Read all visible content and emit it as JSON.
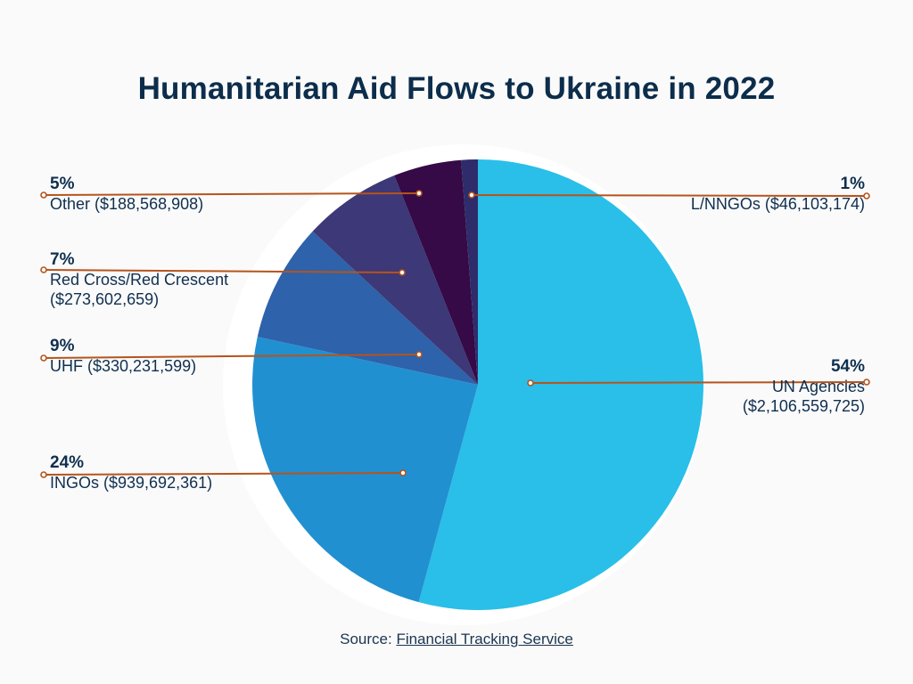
{
  "chart_data": {
    "type": "pie",
    "title": "Humanitarian Aid Flows to Ukraine in 2022",
    "slices": [
      {
        "key": "un",
        "pct_label": "54%",
        "name": "UN Agencies",
        "amount": "($2,106,559,725)",
        "value": 2106559725,
        "color": "#29bfe8"
      },
      {
        "key": "ingo",
        "pct_label": "24%",
        "name": "INGOs",
        "amount": "($939,692,361)",
        "value": 939692361,
        "color": "#2190d0"
      },
      {
        "key": "uhf",
        "pct_label": "9%",
        "name": "UHF",
        "amount": "($330,231,599)",
        "value": 330231599,
        "color": "#2e62aa"
      },
      {
        "key": "rc",
        "pct_label": "7%",
        "name": "Red Cross/Red Crescent",
        "amount": "($273,602,659)",
        "value": 273602659,
        "color": "#3d3877"
      },
      {
        "key": "other",
        "pct_label": "5%",
        "name": "Other",
        "amount": "($188,568,908)",
        "value": 188568908,
        "color": "#350a46"
      },
      {
        "key": "lnngo",
        "pct_label": "1%",
        "name": "L/NNGOs",
        "amount": "($46,103,174)",
        "value": 46103174,
        "color": "#2e2c6a"
      }
    ],
    "leader_color": "#b5541c"
  },
  "labels": {
    "un_pct": "54%",
    "un_line1": "UN Agencies",
    "un_line2": "($2,106,559,725)",
    "ingo_pct": "24%",
    "ingo_line1": "INGOs ($939,692,361)",
    "uhf_pct": "9%",
    "uhf_line1": "UHF ($330,231,599)",
    "rc_pct": "7%",
    "rc_line1": "Red Cross/Red Crescent",
    "rc_line2": "($273,602,659)",
    "other_pct": "5%",
    "other_line1": "Other ($188,568,908)",
    "lnngo_pct": "1%",
    "lnngo_line1": "L/NNGOs ($46,103,174)"
  },
  "source": {
    "prefix": "Source: ",
    "link_text": "Financial Tracking Service"
  }
}
